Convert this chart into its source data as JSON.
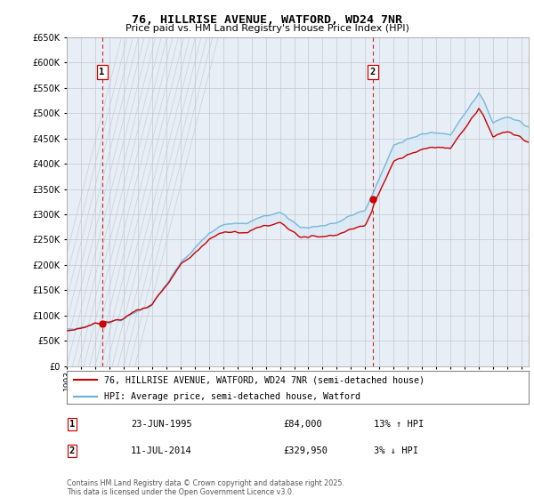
{
  "title": "76, HILLRISE AVENUE, WATFORD, WD24 7NR",
  "subtitle": "Price paid vs. HM Land Registry's House Price Index (HPI)",
  "legend_line1": "76, HILLRISE AVENUE, WATFORD, WD24 7NR (semi-detached house)",
  "legend_line2": "HPI: Average price, semi-detached house, Watford",
  "sale1_date": "23-JUN-1995",
  "sale1_price": "£84,000",
  "sale1_hpi": "13% ↑ HPI",
  "sale2_date": "11-JUL-2014",
  "sale2_price": "£329,950",
  "sale2_hpi": "3% ↓ HPI",
  "footer": "Contains HM Land Registry data © Crown copyright and database right 2025.\nThis data is licensed under the Open Government Licence v3.0.",
  "ylim": [
    0,
    650000
  ],
  "yticks": [
    0,
    50000,
    100000,
    150000,
    200000,
    250000,
    300000,
    350000,
    400000,
    450000,
    500000,
    550000,
    600000,
    650000
  ],
  "hpi_color": "#6baed6",
  "price_color": "#cc0000",
  "vline_color": "#cc0000",
  "hpi_fill_color": "#d0e8f5",
  "background_color": "#e8eef5",
  "grid_color": "#c0c8d8",
  "hatch_color": "#b0bac8",
  "sale1_x": 1995.48,
  "sale2_x": 2014.52,
  "sale1_price_val": 84000,
  "sale2_price_val": 329950,
  "xmin": 1993.0,
  "xmax": 2025.5
}
